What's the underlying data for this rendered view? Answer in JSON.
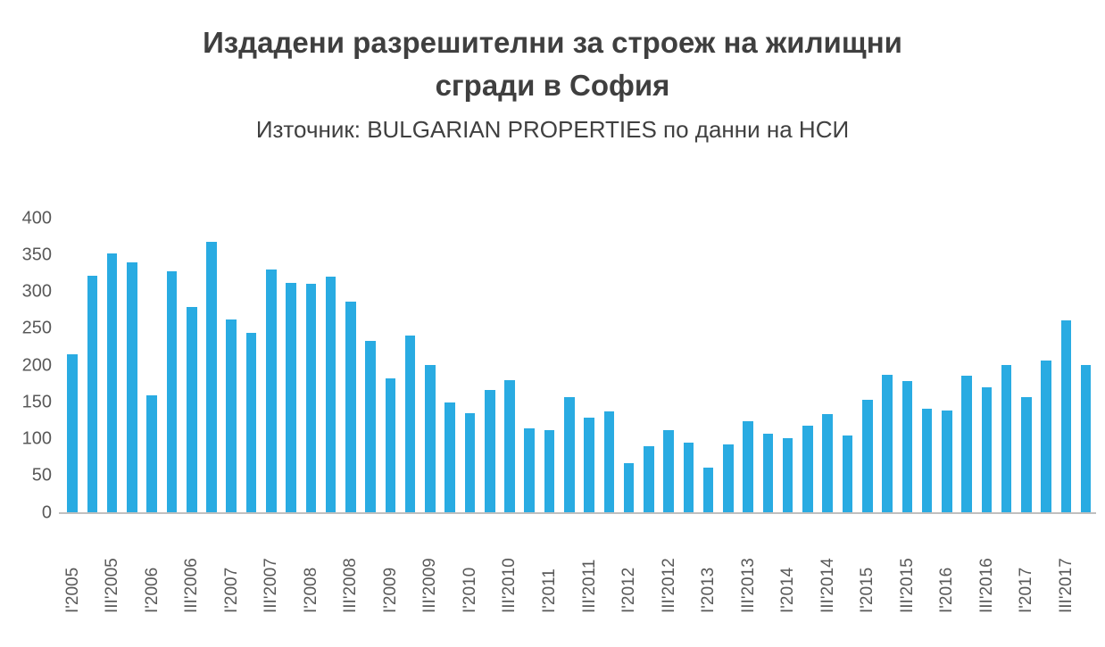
{
  "header": {
    "title_line1": "Издадени разрешителни за строеж на жилищни",
    "title_line2": "сгради в София",
    "subtitle": "Източник: BULGARIAN PROPERTIES по данни на НСИ"
  },
  "chart_data": {
    "type": "bar",
    "title": "Издадени разрешителни за строеж на жилищни сгради в София",
    "subtitle": "Източник: BULGARIAN PROPERTIES по данни на НСИ",
    "xlabel": "",
    "ylabel": "",
    "y_min": 0,
    "y_max": 400,
    "y_ticks": [
      0,
      50,
      100,
      150,
      200,
      250,
      300,
      350,
      400
    ],
    "x_label_every": 2,
    "grid": false,
    "legend": false,
    "colors": {
      "bar": "#29abe2",
      "axis_line": "#bfbfbf",
      "tick_text": "#595959",
      "title_text": "#3f3f3f"
    },
    "categories": [
      "I'2005",
      "II'2005",
      "III'2005",
      "IV'2005",
      "I'2006",
      "II'2006",
      "III'2006",
      "IV'2006",
      "I'2007",
      "II'2007",
      "III'2007",
      "IV'2007",
      "I'2008",
      "II'2008",
      "III'2008",
      "IV'2008",
      "I'2009",
      "II'2009",
      "III'2009",
      "IV'2009",
      "I'2010",
      "II'2010",
      "III'2010",
      "IV'2010",
      "I'2011",
      "II'2011",
      "III'2011",
      "IV'2011",
      "I'2012",
      "II'2012",
      "III'2012",
      "IV'2012",
      "I'2013",
      "II'2013",
      "III'2013",
      "IV'2013",
      "I'2014",
      "II'2014",
      "III'2014",
      "IV'2014",
      "I'2015",
      "II'2015",
      "III'2015",
      "IV'2015",
      "I'2016",
      "II'2016",
      "III'2016",
      "IV'2016",
      "I'2017",
      "II'2017",
      "III'2017",
      "IV'2017"
    ],
    "values": [
      215,
      322,
      352,
      340,
      160,
      328,
      280,
      368,
      263,
      245,
      330,
      312,
      311,
      321,
      287,
      233,
      183,
      241,
      201,
      150,
      136,
      167,
      180,
      115,
      112,
      157,
      129,
      138,
      67,
      90,
      112,
      95,
      62,
      93,
      124,
      108,
      102,
      118,
      134,
      105,
      153,
      188,
      179,
      141,
      139,
      186,
      170,
      201,
      157,
      207,
      262,
      201
    ]
  }
}
